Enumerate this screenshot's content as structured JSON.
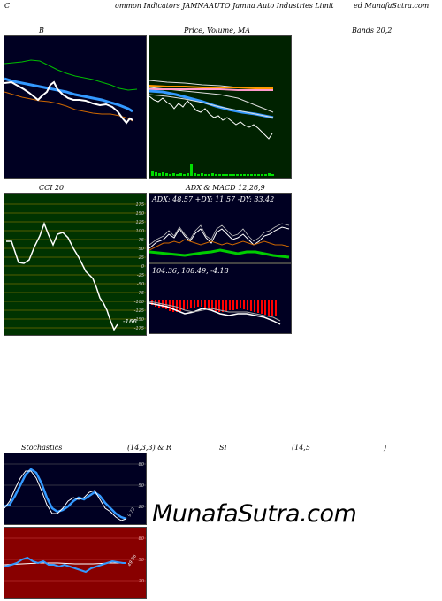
{
  "header": {
    "left": "C",
    "center": "ommon  Indicators JAMNAAUTO Jamna  Auto  Industries Limit",
    "right": "ed MunafaSutra.com"
  },
  "row1": {
    "label_b": "B",
    "label_price": "Price,  Volume,  MA",
    "label_bands": "Bands 20,2"
  },
  "row2": {
    "label_cci": "CCI 20",
    "label_adx": "ADX  & MACD 12,26,9",
    "cci_value": "-166",
    "cci_ticks": [
      "175",
      "150",
      "125",
      "100",
      "75",
      "50",
      "25",
      "0",
      "-25",
      "-50",
      "-75",
      "-100",
      "-125",
      "-150",
      "-175"
    ],
    "adx_text": "ADX: 48.57  +DY: 11.57 -DY: 33.42",
    "macd_text": "104.36,  108.49,  -4.13"
  },
  "row3": {
    "label_stoch": "Stochastics",
    "label_params": "(14,3,3) & R",
    "label_si": "SI",
    "label_rsi_params": "(14,5",
    "label_close": ")",
    "stoch_ticks": [
      "80",
      "50",
      "20"
    ],
    "stoch_value": "9.73",
    "rsi_ticks": [
      "80",
      "50",
      "20"
    ],
    "rsi_value": "49.56"
  },
  "watermark": "MunafaSutra.com",
  "colors": {
    "dark_panel": "#000022",
    "green_panel": "#002200",
    "cci_panel": "#003300",
    "rsi_panel": "#880000",
    "blue_line": "#3399ff",
    "orange_line": "#cc6600",
    "green_line": "#00cc00"
  }
}
